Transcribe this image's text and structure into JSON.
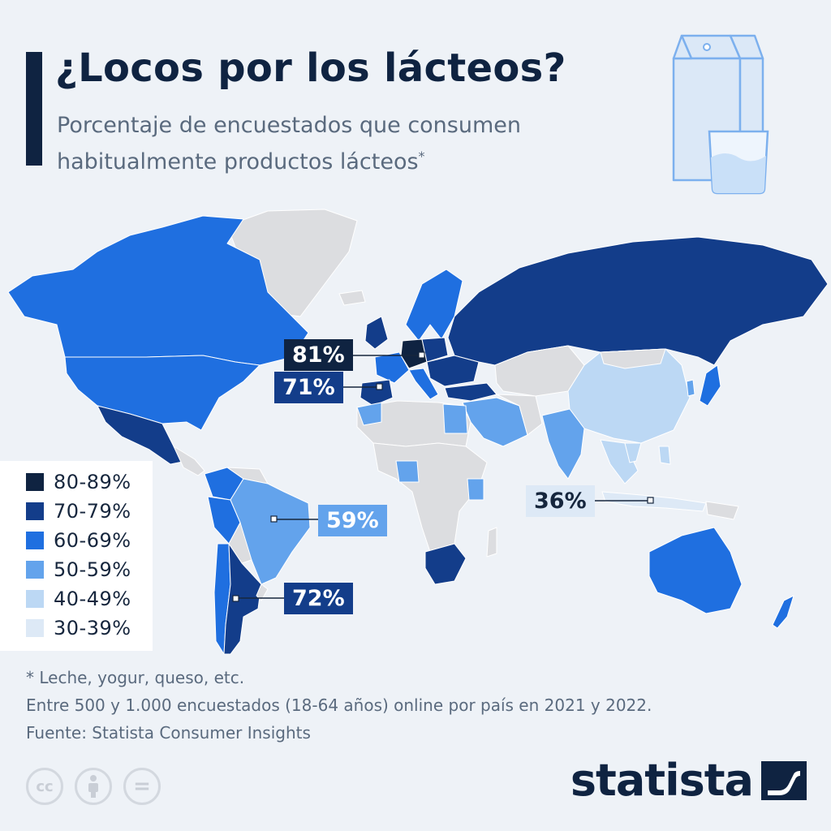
{
  "header": {
    "title": "¿Locos por los lácteos?",
    "subtitle_line1": "Porcentaje de encuestados que consumen",
    "subtitle_line2": "habitualmente productos lácteos",
    "subtitle_mark": "*"
  },
  "legend": {
    "items": [
      {
        "label": "80-89%",
        "color": "#0f2341"
      },
      {
        "label": "70-79%",
        "color": "#133d8a"
      },
      {
        "label": "60-69%",
        "color": "#1f6fe0"
      },
      {
        "label": "50-59%",
        "color": "#63a3ec"
      },
      {
        "label": "40-49%",
        "color": "#bcd8f4"
      },
      {
        "label": "30-39%",
        "color": "#dde9f6"
      }
    ]
  },
  "callouts": [
    {
      "value": "81%",
      "range": "80-89%"
    },
    {
      "value": "71%",
      "range": "70-79%"
    },
    {
      "value": "59%",
      "range": "50-59%"
    },
    {
      "value": "72%",
      "range": "70-79%"
    },
    {
      "value": "36%",
      "range": "30-39%"
    }
  ],
  "colors": {
    "no_data": "#dcdde0",
    "background": "#eef2f7"
  },
  "footnote": {
    "line1": "* Leche, yogur, queso, etc.",
    "line2": "Entre 500 y 1.000 encuestados (18-64 años) online por país en 2021 y 2022.",
    "line3": "Fuente: Statista Consumer Insights"
  },
  "license_icons": [
    "cc-icon",
    "attribution-icon",
    "no-derivatives-icon"
  ],
  "license_icon_text": {
    "cc": "cc",
    "equals": "="
  },
  "brand": {
    "name": "statista"
  }
}
